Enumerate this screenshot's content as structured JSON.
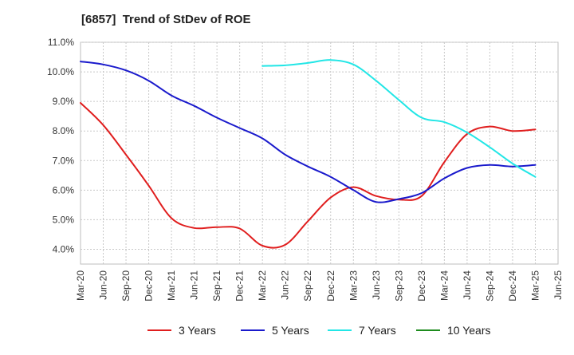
{
  "chart_data": {
    "type": "line",
    "title": "[6857]  Trend of StDev of ROE",
    "xlabel": "",
    "ylabel": "",
    "ylim": [
      3.5,
      11.0
    ],
    "yticks": [
      "4.0%",
      "5.0%",
      "6.0%",
      "7.0%",
      "8.0%",
      "9.0%",
      "10.0%",
      "11.0%"
    ],
    "ytick_values": [
      4.0,
      5.0,
      6.0,
      7.0,
      8.0,
      9.0,
      10.0,
      11.0
    ],
    "x_categories": [
      "Mar-20",
      "Jun-20",
      "Sep-20",
      "Dec-20",
      "Mar-21",
      "Jun-21",
      "Sep-21",
      "Dec-21",
      "Mar-22",
      "Jun-22",
      "Sep-22",
      "Dec-22",
      "Mar-23",
      "Jun-23",
      "Sep-23",
      "Dec-23",
      "Mar-24",
      "Jun-24",
      "Sep-24",
      "Dec-24",
      "Mar-25",
      "Jun-25"
    ],
    "grid": true,
    "legend_position": "bottom",
    "series": [
      {
        "name": "3 Years",
        "color": "#e01e1e",
        "values": [
          8.95,
          8.2,
          7.2,
          6.15,
          5.05,
          4.72,
          4.75,
          4.7,
          4.12,
          4.15,
          4.95,
          5.75,
          6.1,
          5.8,
          5.68,
          5.8,
          6.95,
          7.9,
          8.15,
          8.0,
          8.05,
          null
        ]
      },
      {
        "name": "5 Years",
        "color": "#1a1acc",
        "values": [
          10.35,
          10.25,
          10.05,
          9.7,
          9.2,
          8.85,
          8.45,
          8.1,
          7.75,
          7.2,
          6.8,
          6.45,
          6.0,
          5.6,
          5.7,
          5.9,
          6.4,
          6.75,
          6.85,
          6.8,
          6.85,
          null
        ]
      },
      {
        "name": "7 Years",
        "color": "#22e6e6",
        "values": [
          null,
          null,
          null,
          null,
          null,
          null,
          null,
          null,
          10.2,
          10.22,
          10.3,
          10.4,
          10.25,
          9.7,
          9.05,
          8.45,
          8.3,
          7.95,
          7.45,
          6.9,
          6.45,
          null
        ]
      },
      {
        "name": "10 Years",
        "color": "#1e8c1e",
        "values": []
      }
    ]
  }
}
